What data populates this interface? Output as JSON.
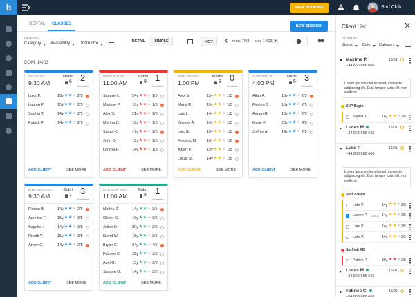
{
  "topbar": {
    "logo": "b",
    "new_booking": "NEW BOOKING",
    "user": "Surf Club"
  },
  "tabs": [
    "RENTAL",
    "CLASSES"
  ],
  "new_session": "NEW SESSION",
  "filters": {
    "label": "FILTER BY",
    "options": [
      "Category",
      "Availability",
      "Instructor"
    ]
  },
  "view": [
    "DETAIL",
    "SIMPLE"
  ],
  "today": "HOY",
  "range": [
    "mon. 7/03",
    "sun. 14/03"
  ],
  "day": "DOM. 14/03",
  "available_label": "Available",
  "add_client": "ADD CLIENT",
  "see_more": "SEE MORE",
  "cards": [
    {
      "name": "WINDSURF",
      "time": "9:30 AM",
      "instructor": "Martin",
      "count": 6,
      "available": 2,
      "color": "#1e88e5",
      "clients": [
        {
          "name": "Luke P.",
          "age": "19y",
          "level": "2/5",
          "alert": true
        },
        {
          "name": "Lauren P.",
          "age": "15y",
          "level": "2/5",
          "alert": false
        },
        {
          "name": "Sophia T.",
          "age": "14y",
          "level": "2/5",
          "alert": false
        },
        {
          "name": "Patrick P.",
          "age": "14y",
          "level": "2/5",
          "alert": false
        }
      ]
    },
    {
      "name": "PADDLE SURF...",
      "time": "11:00 AM",
      "instructor": "Martin",
      "count": 9,
      "available": 1,
      "color": "#e53935",
      "clients": [
        {
          "name": "Samuel L.",
          "age": "24y",
          "level": "1/5",
          "alert": false
        },
        {
          "name": "Maxime P.",
          "age": "16y",
          "level": "1/5",
          "alert": true
        },
        {
          "name": "Alex S.",
          "age": "21y",
          "level": "1/5",
          "alert": false
        },
        {
          "name": "Martha C.",
          "age": "18y",
          "level": "1/5",
          "alert": false
        },
        {
          "name": "Susan C.",
          "age": "17y",
          "level": "1/5",
          "alert": true
        },
        {
          "name": "John O.",
          "age": "19y",
          "level": "1/5",
          "alert": false
        },
        {
          "name": "Lorena P.",
          "age": "14y",
          "level": "1/5",
          "alert": false
        }
      ]
    },
    {
      "name": "SURF INITIATI...",
      "time": "1:00 PM",
      "instructor": "Martin",
      "count": 8,
      "available": 0,
      "color": "#f2b600",
      "clients": [
        {
          "name": "Alex S.",
          "age": "15y",
          "level": "1/5",
          "alert": true
        },
        {
          "name": "Maria R.",
          "age": "15y",
          "level": "1/5",
          "alert": false
        },
        {
          "name": "Luis L.",
          "age": "14y",
          "level": "1/5",
          "alert": false
        },
        {
          "name": "Jerome A.",
          "age": "14y",
          "level": "1/5",
          "alert": false
        },
        {
          "name": "Loic G.",
          "age": "19y",
          "level": "1/5",
          "alert": true
        },
        {
          "name": "Frederic M.",
          "age": "16y",
          "level": "1/5",
          "alert": true
        },
        {
          "name": "Alban P.",
          "age": "15y",
          "level": "1/5",
          "alert": false
        },
        {
          "name": "Lucas M.",
          "age": "14y",
          "level": "1/5",
          "alert": false
        }
      ]
    },
    {
      "name": "SURF INITIATI...",
      "time": "4:00 PM",
      "instructor": "Martin",
      "count": 5,
      "available": 3,
      "color": "#1e88e5",
      "clients": [
        {
          "name": "Allan A.",
          "age": "16y",
          "level": "2/5",
          "alert": true
        },
        {
          "name": "Flavien B.",
          "age": "15y",
          "level": "2/5",
          "alert": false
        },
        {
          "name": "Adrien G.",
          "age": "16y",
          "level": "2/5",
          "alert": false
        },
        {
          "name": "Marie F.",
          "age": "20y",
          "level": "4/5",
          "alert": false
        },
        {
          "name": "Joffrey A.",
          "age": "14y",
          "level": "2/5",
          "alert": false
        }
      ]
    },
    {
      "name": "KITE SURF ADV...",
      "time": "9:30 AM",
      "instructor": "Gabri",
      "count": 7,
      "available": 3,
      "color": "#1e88e5",
      "clients": [
        {
          "name": "Florian B",
          "age": "14y",
          "level": "2/5",
          "alert": true
        },
        {
          "name": "Aurelien F.",
          "age": "15y",
          "level": "3/5",
          "alert": false
        },
        {
          "name": "Sagette J.",
          "age": "14y",
          "level": "3/5",
          "alert": false
        },
        {
          "name": "Ricotti Y.",
          "age": "15y",
          "level": "3/5",
          "alert": false
        },
        {
          "name": "Artem G.",
          "age": "14y",
          "level": "2/5",
          "alert": true
        }
      ]
    },
    {
      "name": "KITE SURF ADV...",
      "time": "11:00 AM",
      "instructor": "Gabri",
      "count": 8,
      "available": 1,
      "color": "#26a69a",
      "clients": [
        {
          "name": "Mathiu Z.",
          "age": "14y",
          "level": "3/5",
          "alert": true
        },
        {
          "name": "Olivier G.",
          "age": "16y",
          "level": "3/5",
          "alert": false
        },
        {
          "name": "Julien D.",
          "age": "20y",
          "level": "3/5",
          "alert": false
        },
        {
          "name": "David W.",
          "age": "18y",
          "level": "3/5",
          "alert": false
        },
        {
          "name": "Bryan C.",
          "age": "24y",
          "level": "4/5",
          "alert": true
        },
        {
          "name": "Fabrice C.",
          "age": "22y",
          "level": "3/5",
          "alert": false
        },
        {
          "name": "Axel G.",
          "age": "15y",
          "level": "3/5",
          "alert": false
        },
        {
          "name": "Susane O.",
          "age": "14y",
          "level": "3/5",
          "alert": false
        }
      ]
    }
  ],
  "client_list": {
    "title": "Client List",
    "filter_label": "FILTER BY",
    "filters": [
      "Status",
      "Date",
      "Category"
    ],
    "items": [
      {
        "name": "Maxime P.",
        "phone": "+34 666 666 666",
        "date": "15/01",
        "note": "Lorem ipsum dolor sit amet, consecte adipiscing elit. Duis tempor justo elit, non eleifend.",
        "groups": [
          {
            "name": "SUP Begin",
            "color": "#f2b600",
            "clients": [
              {
                "name": "Sophia T",
                "age": "14y",
                "level": "2/5"
              }
            ]
          }
        ]
      },
      {
        "name": "Lucas M",
        "phone": "+34 666 666 666",
        "date": "15/01",
        "dot": "#26a69a"
      },
      {
        "name": "Luke P",
        "phone": "+34 666 666 666",
        "date": "15/01",
        "note": "Lorem ipsum dolor sit amet, consecte adipiscing elit. Duis tempor justo elit, non eleifend.",
        "groups": [
          {
            "name": "Surf 2 Days",
            "color": "#f2b600",
            "clients": [
              {
                "name": "Luke P.",
                "age": "14y",
                "level": "2/5"
              },
              {
                "name": "Lauren P.",
                "date": "15/01",
                "age": "14y",
                "level": "2/5",
                "checked": true
              },
              {
                "name": "Luke P.",
                "age": "14y",
                "level": "2/5"
              },
              {
                "name": "Luke P.",
                "age": "14y",
                "level": "2/5"
              }
            ]
          },
          {
            "name": "Surf init AD",
            "color": "#e53935",
            "clients": [
              {
                "name": "Patrick P.",
                "age": "39y",
                "level": "2/5"
              }
            ]
          }
        ]
      },
      {
        "name": "Lucas M",
        "phone": "+34 666 666 666",
        "date": "15/01",
        "dot": "#26a69a"
      },
      {
        "name": "Fabrice C.",
        "phone": "+34 666 666 666",
        "date": "15/01",
        "dot": "#26a69a"
      }
    ]
  }
}
